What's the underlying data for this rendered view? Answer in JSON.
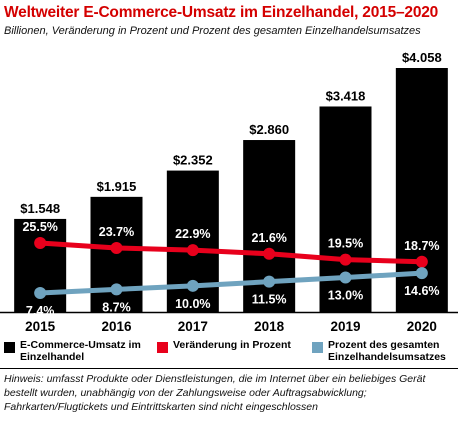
{
  "chart_data": {
    "type": "bar",
    "title": "Weltweiter E-Commerce-Umsatz im Einzelhandel, 2015–2020",
    "subtitle": "Billionen, Veränderung in Prozent und Prozent des gesamten Einzelhandelsumsatzes",
    "categories": [
      "2015",
      "2016",
      "2017",
      "2018",
      "2019",
      "2020"
    ],
    "series": [
      {
        "name": "E-Commerce-Umsatz im Einzelhandel",
        "type": "bar",
        "color": "#000000",
        "values": [
          1.548,
          1.915,
          2.352,
          2.86,
          3.418,
          4.058
        ],
        "labels": [
          "$1.548",
          "$1.915",
          "$2.352",
          "$2.860",
          "$3.418",
          "$4.058"
        ]
      },
      {
        "name": "Veränderung in Prozent",
        "type": "line",
        "color": "#e8001c",
        "values": [
          25.5,
          23.7,
          22.9,
          21.6,
          19.5,
          18.7
        ],
        "labels": [
          "25.5%",
          "23.7%",
          "22.9%",
          "21.6%",
          "19.5%",
          "18.7%"
        ]
      },
      {
        "name": "Prozent des gesamten Einzelhandelsumsatzes",
        "type": "line",
        "color": "#6fa3bf",
        "values": [
          7.4,
          8.7,
          10.0,
          11.5,
          13.0,
          14.6
        ],
        "labels": [
          "7.4%",
          "8.7%",
          "10.0%",
          "11.5%",
          "13.0%",
          "14.6%"
        ]
      }
    ],
    "grid": false,
    "legend_position": "bottom"
  },
  "note": "Hinweis: umfasst Produkte oder Dienstleistungen, die im Internet über ein beliebiges Gerät bestellt wurden, unabhängig von der Zahlungsweise oder Auftragsabwicklung; Fahrkarten/Flugtickets und Eintrittskarten sind nicht eingeschlossen"
}
